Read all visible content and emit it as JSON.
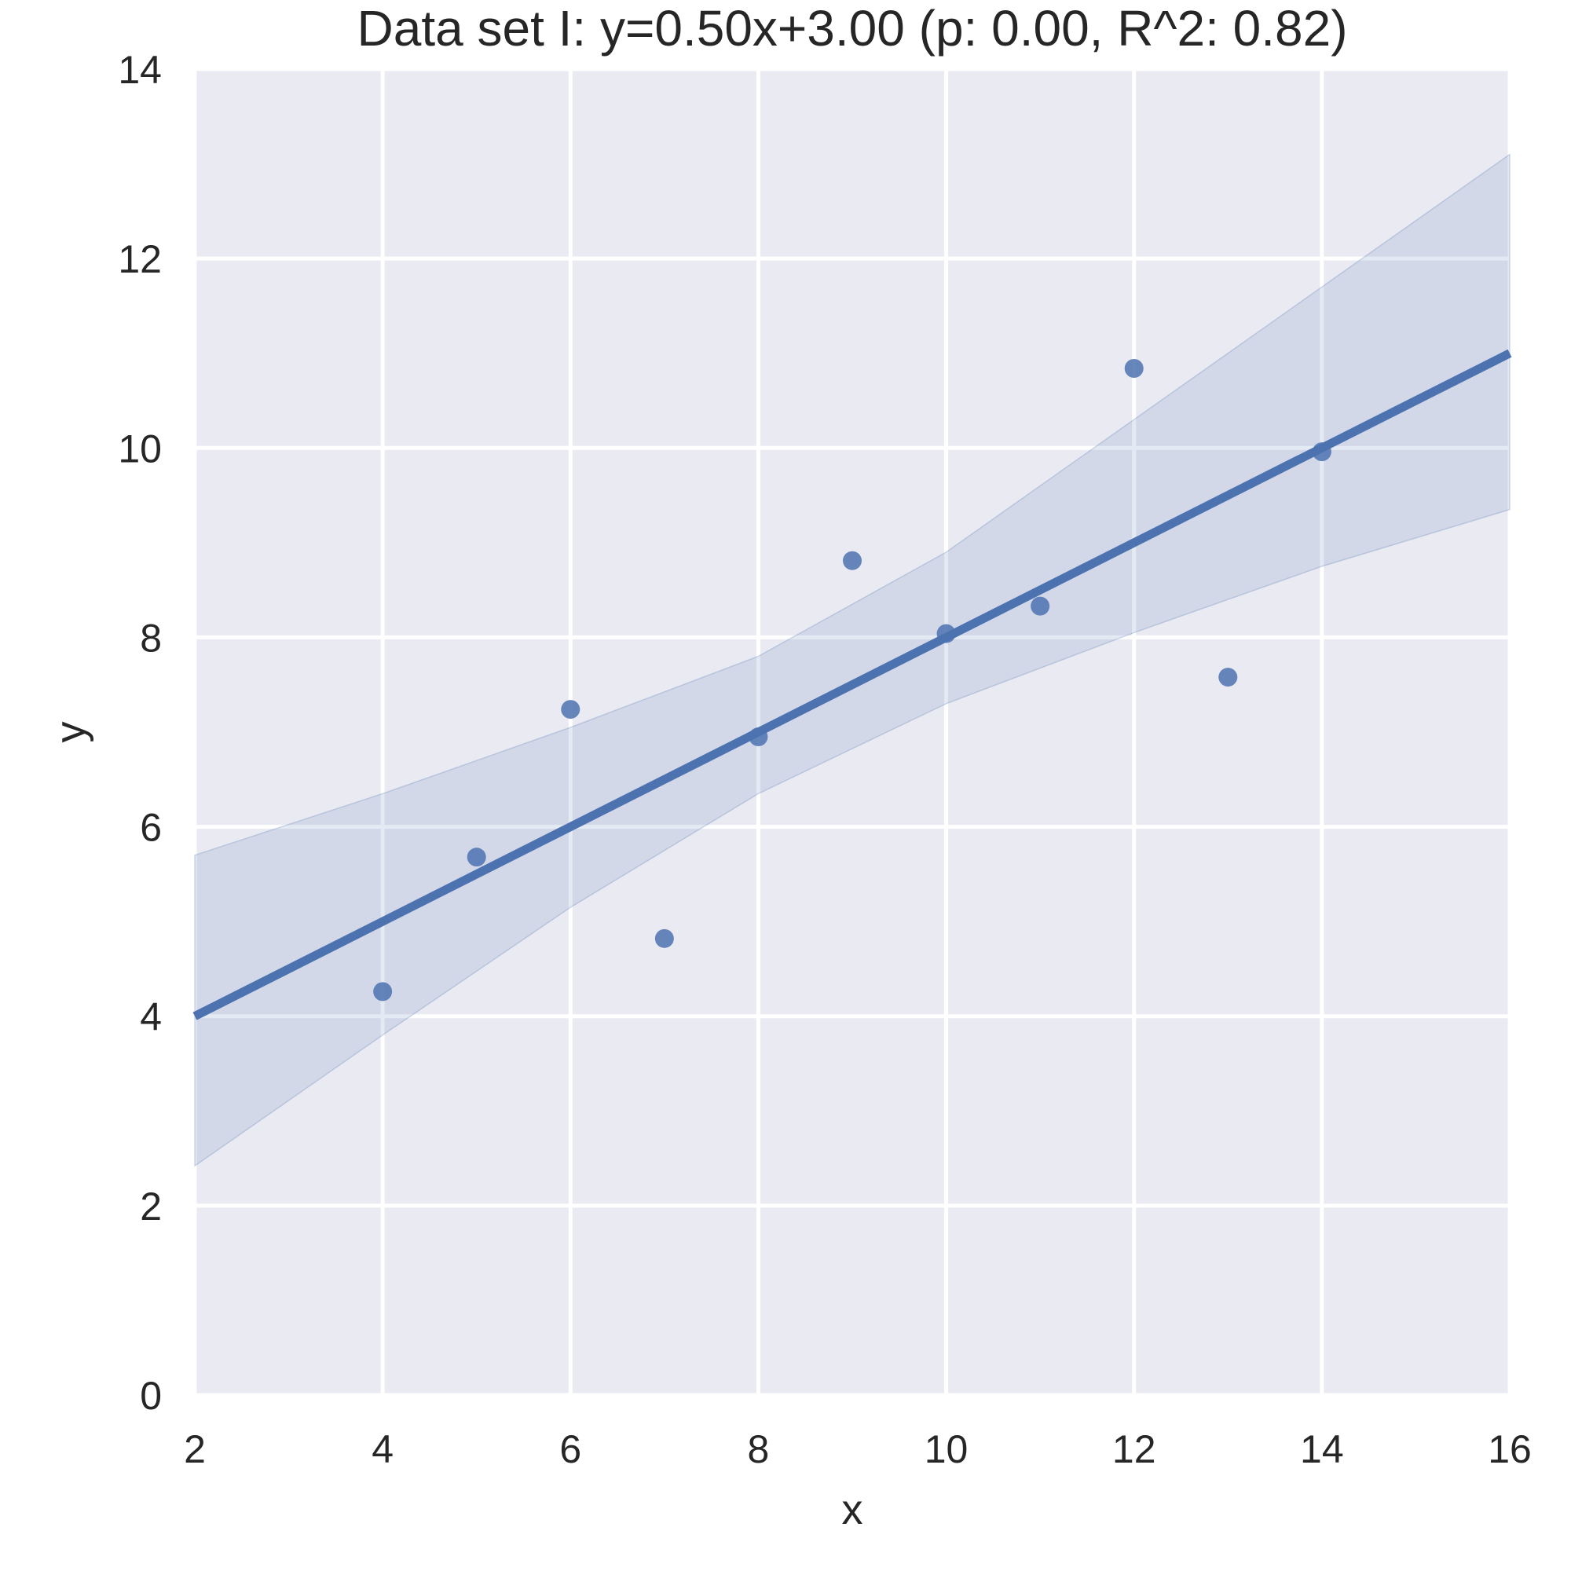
{
  "chart_data": {
    "type": "scatter",
    "title": "Data set I: y=0.50x+3.00 (p: 0.00, R^2: 0.82)",
    "xlabel": "x",
    "ylabel": "y",
    "xlim": [
      2,
      16
    ],
    "ylim": [
      0,
      14
    ],
    "grid": true,
    "xticks": [
      2,
      4,
      6,
      8,
      10,
      12,
      14,
      16
    ],
    "yticks": [
      0,
      2,
      4,
      6,
      8,
      10,
      12,
      14
    ],
    "series": [
      {
        "name": "observations",
        "type": "scatter",
        "x": [
          4,
          5,
          6,
          7,
          8,
          9,
          10,
          11,
          12,
          13,
          14
        ],
        "y": [
          4.26,
          5.68,
          7.24,
          4.82,
          6.95,
          8.81,
          8.04,
          8.33,
          10.84,
          7.58,
          9.96
        ]
      },
      {
        "name": "regression",
        "type": "line",
        "slope": 0.5,
        "intercept": 3.0,
        "x_range": [
          2,
          16
        ]
      },
      {
        "name": "confidence-band",
        "type": "area",
        "x": [
          2,
          4,
          6,
          8,
          10,
          12,
          14,
          16
        ],
        "upper": [
          5.7,
          6.35,
          7.05,
          7.8,
          8.9,
          10.3,
          11.7,
          13.1
        ],
        "lower": [
          2.42,
          3.8,
          5.15,
          6.35,
          7.3,
          8.05,
          8.75,
          9.35
        ]
      }
    ],
    "colors": {
      "plot_background": "#eaeaf2",
      "grid": "#ffffff",
      "line": "#4c72b0",
      "points": "#4c72b0",
      "band": "#4c72b0",
      "text": "#262626"
    }
  }
}
